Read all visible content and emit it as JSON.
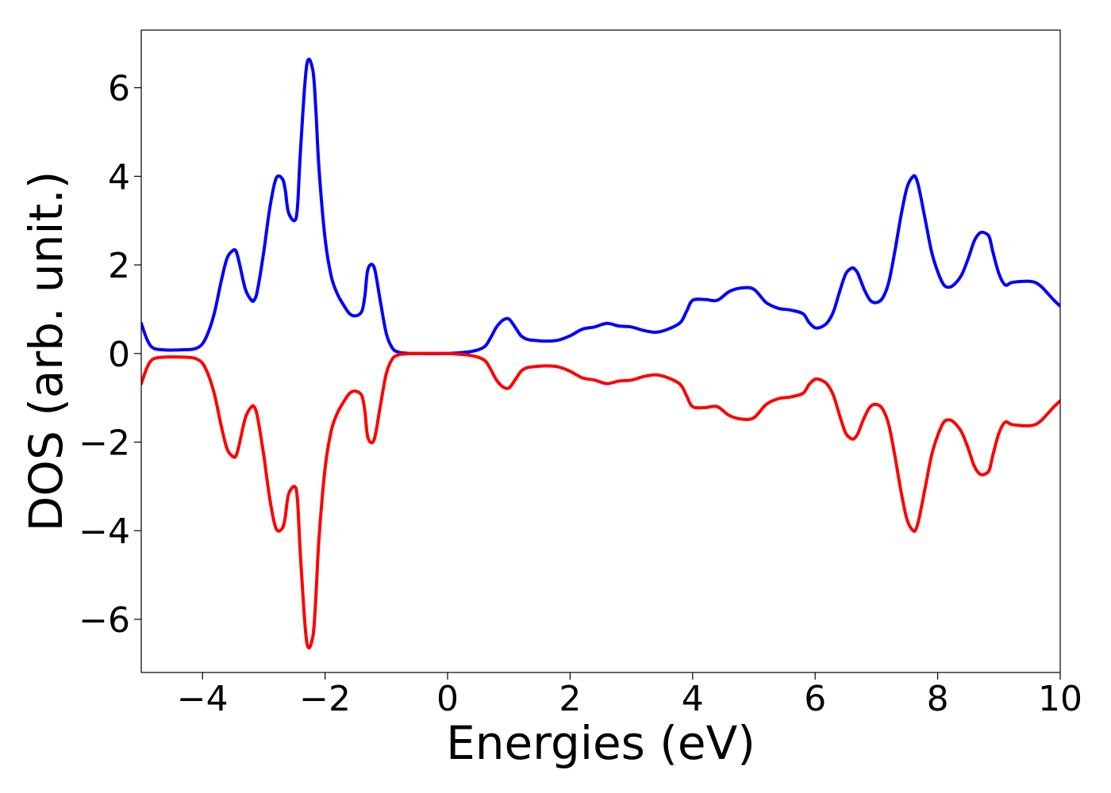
{
  "chart_data": {
    "type": "line",
    "title": "",
    "xlabel": "Energies (eV)",
    "ylabel": "DOS (arb. unit.)",
    "xlim": [
      -5,
      10
    ],
    "ylim": [
      -7.2,
      7.3
    ],
    "grid": false,
    "legend": "none",
    "xticks": [
      -4,
      -2,
      0,
      2,
      4,
      6,
      8,
      10
    ],
    "yticks": [
      -6,
      -4,
      -2,
      0,
      2,
      4,
      6
    ],
    "xtick_labels": [
      "−4",
      "−2",
      "0",
      "2",
      "4",
      "6",
      "8",
      "10"
    ],
    "ytick_labels": [
      "−6",
      "−4",
      "−2",
      "0",
      "2",
      "4",
      "6"
    ],
    "series": [
      {
        "color": "#0000ff",
        "x": [
          -5.0,
          -4.9,
          -4.8,
          -4.6,
          -4.4,
          -4.2,
          -4.1,
          -4.0,
          -3.9,
          -3.8,
          -3.7,
          -3.6,
          -3.5,
          -3.45,
          -3.4,
          -3.3,
          -3.2,
          -3.15,
          -3.1,
          -3.0,
          -2.9,
          -2.8,
          -2.7,
          -2.65,
          -2.6,
          -2.5,
          -2.45,
          -2.4,
          -2.3,
          -2.2,
          -2.15,
          -2.1,
          -2.0,
          -1.9,
          -1.8,
          -1.7,
          -1.6,
          -1.5,
          -1.4,
          -1.35,
          -1.3,
          -1.2,
          -1.1,
          -1.0,
          -0.9,
          -0.8,
          -0.7,
          -0.6,
          -0.5,
          -0.4,
          0.0,
          0.4,
          0.6,
          0.7,
          0.8,
          0.9,
          1.0,
          1.1,
          1.2,
          1.3,
          1.4,
          1.6,
          1.8,
          2.0,
          2.2,
          2.4,
          2.6,
          2.8,
          3.0,
          3.2,
          3.4,
          3.6,
          3.8,
          3.9,
          4.0,
          4.2,
          4.4,
          4.6,
          4.8,
          5.0,
          5.2,
          5.4,
          5.6,
          5.8,
          5.9,
          6.0,
          6.1,
          6.2,
          6.3,
          6.4,
          6.5,
          6.6,
          6.65,
          6.7,
          6.8,
          6.9,
          7.0,
          7.1,
          7.2,
          7.3,
          7.4,
          7.5,
          7.6,
          7.65,
          7.7,
          7.8,
          7.9,
          8.0,
          8.1,
          8.2,
          8.3,
          8.4,
          8.5,
          8.6,
          8.7,
          8.8,
          8.85,
          8.9,
          9.0,
          9.1,
          9.2,
          9.3,
          9.4,
          9.5,
          9.6,
          9.7,
          9.8,
          9.9,
          10.0
        ],
        "y": [
          0.68,
          0.3,
          0.12,
          0.08,
          0.08,
          0.09,
          0.12,
          0.22,
          0.5,
          0.95,
          1.6,
          2.15,
          2.33,
          2.3,
          2.05,
          1.45,
          1.2,
          1.22,
          1.45,
          2.3,
          3.3,
          3.95,
          3.95,
          3.7,
          3.2,
          3.0,
          3.3,
          4.6,
          6.5,
          6.4,
          5.5,
          4.2,
          2.6,
          1.75,
          1.35,
          1.1,
          0.9,
          0.85,
          0.95,
          1.3,
          1.9,
          1.95,
          1.2,
          0.45,
          0.12,
          0.03,
          0.01,
          0.0,
          0.0,
          0.0,
          0.0,
          0.05,
          0.15,
          0.35,
          0.6,
          0.75,
          0.78,
          0.6,
          0.4,
          0.32,
          0.3,
          0.28,
          0.3,
          0.4,
          0.55,
          0.6,
          0.68,
          0.62,
          0.6,
          0.52,
          0.48,
          0.55,
          0.7,
          0.95,
          1.2,
          1.22,
          1.2,
          1.4,
          1.48,
          1.45,
          1.15,
          1.02,
          0.98,
          0.9,
          0.7,
          0.58,
          0.6,
          0.7,
          0.95,
          1.4,
          1.8,
          1.93,
          1.9,
          1.8,
          1.45,
          1.2,
          1.15,
          1.25,
          1.6,
          2.3,
          3.1,
          3.75,
          4.0,
          3.95,
          3.7,
          3.0,
          2.3,
          1.85,
          1.55,
          1.5,
          1.6,
          1.8,
          2.15,
          2.55,
          2.73,
          2.7,
          2.6,
          2.3,
          1.8,
          1.55,
          1.6,
          1.62,
          1.63,
          1.63,
          1.6,
          1.5,
          1.35,
          1.2,
          1.07
        ]
      },
      {
        "color": "#ff0000",
        "x": [
          -5.0,
          -4.9,
          -4.8,
          -4.6,
          -4.4,
          -4.2,
          -4.1,
          -4.0,
          -3.9,
          -3.8,
          -3.7,
          -3.6,
          -3.5,
          -3.45,
          -3.4,
          -3.3,
          -3.2,
          -3.15,
          -3.1,
          -3.0,
          -2.9,
          -2.8,
          -2.7,
          -2.65,
          -2.6,
          -2.5,
          -2.45,
          -2.4,
          -2.3,
          -2.2,
          -2.15,
          -2.1,
          -2.0,
          -1.9,
          -1.8,
          -1.7,
          -1.6,
          -1.5,
          -1.4,
          -1.35,
          -1.3,
          -1.2,
          -1.1,
          -1.0,
          -0.9,
          -0.8,
          -0.7,
          -0.6,
          -0.5,
          -0.4,
          0.0,
          0.4,
          0.6,
          0.7,
          0.8,
          0.9,
          1.0,
          1.1,
          1.2,
          1.3,
          1.4,
          1.6,
          1.8,
          2.0,
          2.2,
          2.4,
          2.6,
          2.8,
          3.0,
          3.2,
          3.4,
          3.6,
          3.8,
          3.9,
          4.0,
          4.2,
          4.4,
          4.6,
          4.8,
          5.0,
          5.2,
          5.4,
          5.6,
          5.8,
          5.9,
          6.0,
          6.1,
          6.2,
          6.3,
          6.4,
          6.5,
          6.6,
          6.65,
          6.7,
          6.8,
          6.9,
          7.0,
          7.1,
          7.2,
          7.3,
          7.4,
          7.5,
          7.6,
          7.65,
          7.7,
          7.8,
          7.9,
          8.0,
          8.1,
          8.2,
          8.3,
          8.4,
          8.5,
          8.6,
          8.7,
          8.8,
          8.85,
          8.9,
          9.0,
          9.1,
          9.2,
          9.3,
          9.4,
          9.5,
          9.6,
          9.7,
          9.8,
          9.9,
          10.0
        ],
        "y": [
          -0.68,
          -0.3,
          -0.12,
          -0.08,
          -0.08,
          -0.09,
          -0.12,
          -0.22,
          -0.5,
          -0.95,
          -1.6,
          -2.15,
          -2.33,
          -2.3,
          -2.05,
          -1.45,
          -1.2,
          -1.22,
          -1.45,
          -2.3,
          -3.3,
          -3.95,
          -3.95,
          -3.7,
          -3.2,
          -3.0,
          -3.3,
          -4.6,
          -6.5,
          -6.4,
          -5.5,
          -4.2,
          -2.6,
          -1.75,
          -1.35,
          -1.1,
          -0.9,
          -0.85,
          -0.95,
          -1.3,
          -1.9,
          -1.95,
          -1.2,
          -0.45,
          -0.12,
          -0.03,
          -0.01,
          0.0,
          0.0,
          0.0,
          0.0,
          -0.05,
          -0.15,
          -0.35,
          -0.6,
          -0.75,
          -0.78,
          -0.6,
          -0.4,
          -0.32,
          -0.3,
          -0.28,
          -0.3,
          -0.4,
          -0.55,
          -0.6,
          -0.68,
          -0.62,
          -0.6,
          -0.52,
          -0.48,
          -0.55,
          -0.7,
          -0.95,
          -1.2,
          -1.22,
          -1.2,
          -1.4,
          -1.48,
          -1.45,
          -1.15,
          -1.02,
          -0.98,
          -0.9,
          -0.7,
          -0.58,
          -0.6,
          -0.7,
          -0.95,
          -1.4,
          -1.8,
          -1.93,
          -1.9,
          -1.8,
          -1.45,
          -1.2,
          -1.15,
          -1.25,
          -1.6,
          -2.3,
          -3.1,
          -3.75,
          -4.0,
          -3.95,
          -3.7,
          -3.0,
          -2.3,
          -1.85,
          -1.55,
          -1.5,
          -1.6,
          -1.8,
          -2.15,
          -2.55,
          -2.73,
          -2.7,
          -2.6,
          -2.3,
          -1.8,
          -1.55,
          -1.6,
          -1.62,
          -1.63,
          -1.63,
          -1.6,
          -1.5,
          -1.35,
          -1.2,
          -1.07
        ]
      }
    ]
  }
}
